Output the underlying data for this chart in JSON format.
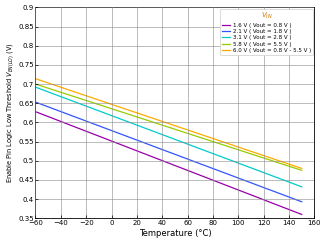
{
  "title": "",
  "xlabel": "Temperature (°C)",
  "ylabel": "Enable Pin Logic Low Threshold Vᴇₙ(LO) (V)",
  "xlim": [
    -60,
    160
  ],
  "ylim": [
    0.35,
    0.9
  ],
  "xticks": [
    -60,
    -40,
    -20,
    0,
    20,
    40,
    60,
    80,
    100,
    120,
    140,
    160
  ],
  "yticks": [
    0.35,
    0.4,
    0.45,
    0.5,
    0.55,
    0.6,
    0.65,
    0.7,
    0.75,
    0.8,
    0.85,
    0.9
  ],
  "ytick_labels": [
    "0.35",
    "0.4",
    "0.45",
    "0.5",
    "0.55",
    "0.6",
    "0.65",
    "0.7",
    "0.75",
    "0.8",
    "0.85",
    "0.9"
  ],
  "lines": [
    {
      "label": "1.6 V ( Vout = 0.8 V )",
      "color": "#9900aa",
      "y_start": 0.628,
      "y_end": 0.36
    },
    {
      "label": "2.1 V ( Vout = 1.8 V )",
      "color": "#3355ff",
      "y_start": 0.653,
      "y_end": 0.393
    },
    {
      "label": "3.1 V ( Vout = 2.8 V )",
      "color": "#00cccc",
      "y_start": 0.692,
      "y_end": 0.432
    },
    {
      "label": "5.8 V ( Vout = 5.5 V )",
      "color": "#99cc00",
      "y_start": 0.7,
      "y_end": 0.475
    },
    {
      "label": "6.0 V ( Vout = 0.8 V - 5.5 V )",
      "color": "#ffaa00",
      "y_start": 0.714,
      "y_end": 0.48
    }
  ],
  "legend_title_color": "#cc7700",
  "background_color": "#ffffff",
  "grid_color": "#888888",
  "spine_color": "#000000"
}
